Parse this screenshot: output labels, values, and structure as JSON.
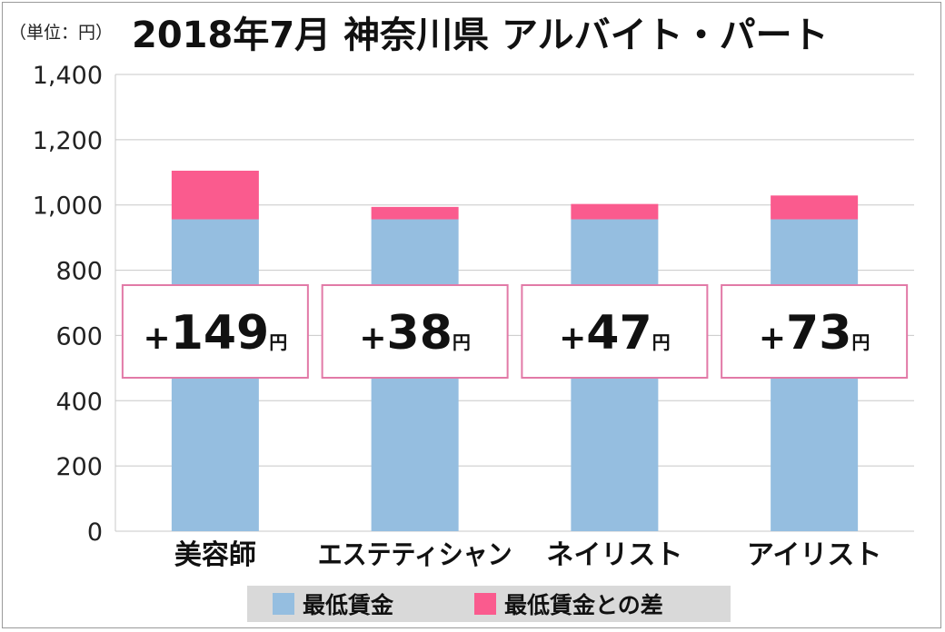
{
  "title": "2018年7月 神奈川県 アルバイト・パート",
  "unit_label": "（単位：円）",
  "colors": {
    "base": "#95bee0",
    "diff": "#fa5b8e",
    "grid": "#c8c8c8",
    "badge_border": "#e27aa7"
  },
  "chart_data": {
    "type": "bar",
    "stacked": true,
    "categories": [
      "美容師",
      "エステティシャン",
      "ネイリスト",
      "アイリスト"
    ],
    "series": [
      {
        "name": "最低賃金",
        "values": [
          956,
          956,
          956,
          956
        ]
      },
      {
        "name": "最低賃金との差",
        "values": [
          149,
          38,
          47,
          73
        ]
      }
    ],
    "ylim": [
      0,
      1400
    ],
    "yticks": [
      "0",
      "200",
      "400",
      "600",
      "800",
      "1,000",
      "1,200",
      "1,400"
    ],
    "grid": true,
    "legend": "bottom",
    "annotations": [
      {
        "sign": "+",
        "number": "149",
        "unit": "円"
      },
      {
        "sign": "+",
        "number": "38",
        "unit": "円"
      },
      {
        "sign": "+",
        "number": "47",
        "unit": "円"
      },
      {
        "sign": "+",
        "number": "73",
        "unit": "円"
      }
    ]
  }
}
